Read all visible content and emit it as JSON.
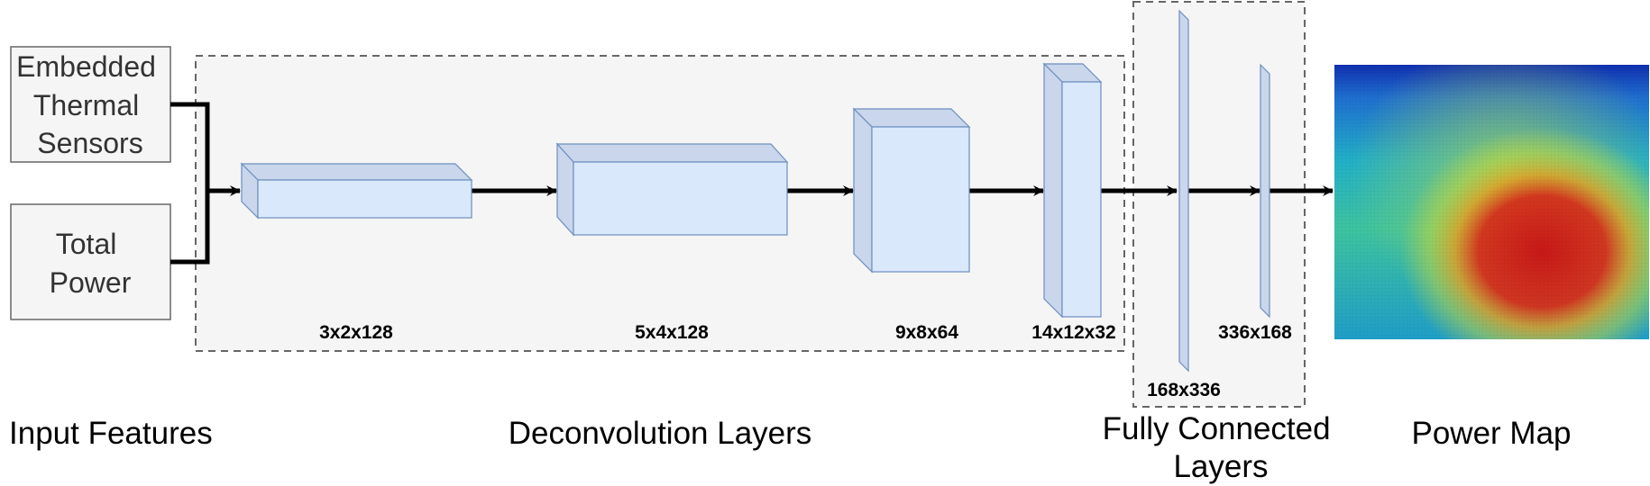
{
  "inputs": {
    "sensors_lines": [
      "Embedded",
      "Thermal",
      "Sensors"
    ],
    "power_lines": [
      "Total",
      "Power"
    ]
  },
  "sections": {
    "input_features": "Input Features",
    "deconvolution": "Deconvolution Layers",
    "fully_connected_lines": [
      "Fully Connected",
      "Layers"
    ],
    "power_map": "Power Map"
  },
  "layers": {
    "deconv": [
      "3x2x128",
      "5x4x128",
      "9x8x64",
      "14x12x32"
    ],
    "fc": [
      "168x336",
      "336x168"
    ]
  },
  "colors": {
    "block_front": "#dae8fc",
    "block_side": "#c9d6eb",
    "block_stroke": "#6c8ebf",
    "group_fill": "#f5f5f5",
    "group_stroke": "#666666",
    "input_fill": "#f5f5f5",
    "input_stroke": "#666666"
  }
}
